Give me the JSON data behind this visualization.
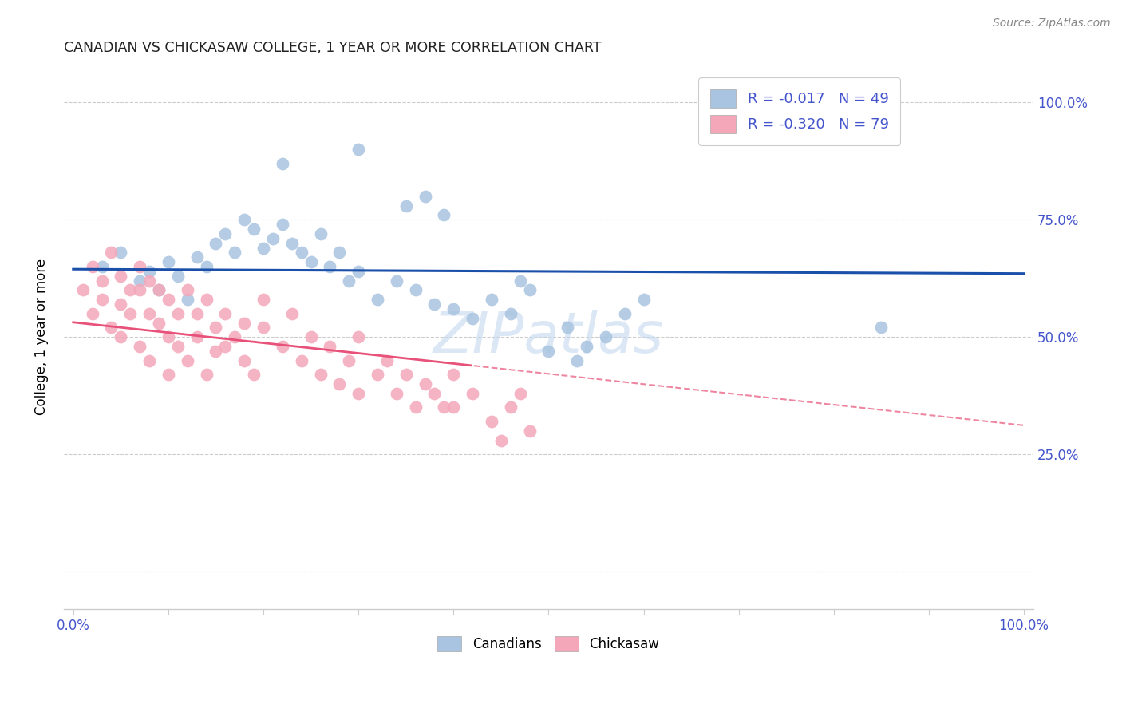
{
  "title": "CANADIAN VS CHICKASAW COLLEGE, 1 YEAR OR MORE CORRELATION CHART",
  "source": "Source: ZipAtlas.com",
  "ylabel": "College, 1 year or more",
  "legend_blue_r": "-0.017",
  "legend_blue_n": "49",
  "legend_pink_r": "-0.320",
  "legend_pink_n": "79",
  "canadians_color": "#a8c4e0",
  "chickasaw_color": "#f4a7b9",
  "trendline_blue_color": "#1a4faa",
  "trendline_pink_color": "#e8527a",
  "watermark_color": "#c5d8f0",
  "grid_color": "#cccccc",
  "axis_color": "#cccccc",
  "tick_label_color": "#4455cc",
  "title_color": "#222222",
  "source_color": "#888888"
}
